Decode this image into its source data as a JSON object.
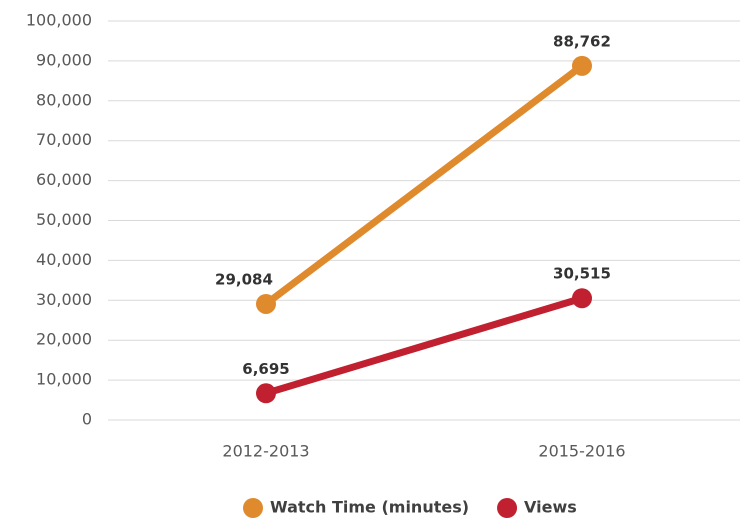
{
  "chart_data": {
    "type": "line",
    "categories": [
      "2012-2013",
      "2015-2016"
    ],
    "series": [
      {
        "name": "Watch Time (minutes)",
        "color": "#e08a2e",
        "values": [
          29084,
          88762
        ],
        "value_labels": [
          "29,084",
          "88,762"
        ]
      },
      {
        "name": "Views",
        "color": "#c0202f",
        "values": [
          6695,
          30515
        ],
        "value_labels": [
          "6,695",
          "30,515"
        ]
      }
    ],
    "ylim": [
      0,
      100000
    ],
    "yticks": [
      0,
      {
        "value": 10000,
        "label": "10,000"
      },
      {
        "value": 20000,
        "label": "20,000"
      },
      {
        "value": 30000,
        "label": "30,000"
      },
      {
        "value": 40000,
        "label": "40,000"
      },
      {
        "value": 50000,
        "label": "50,000"
      },
      {
        "value": 60000,
        "label": "60,000"
      },
      {
        "value": 70000,
        "label": "70,000"
      },
      {
        "value": 80000,
        "label": "80,000"
      },
      {
        "value": 90000,
        "label": "90,000"
      },
      {
        "value": 100000,
        "label": "100,000"
      }
    ],
    "grid": true,
    "legend": "bottom"
  }
}
